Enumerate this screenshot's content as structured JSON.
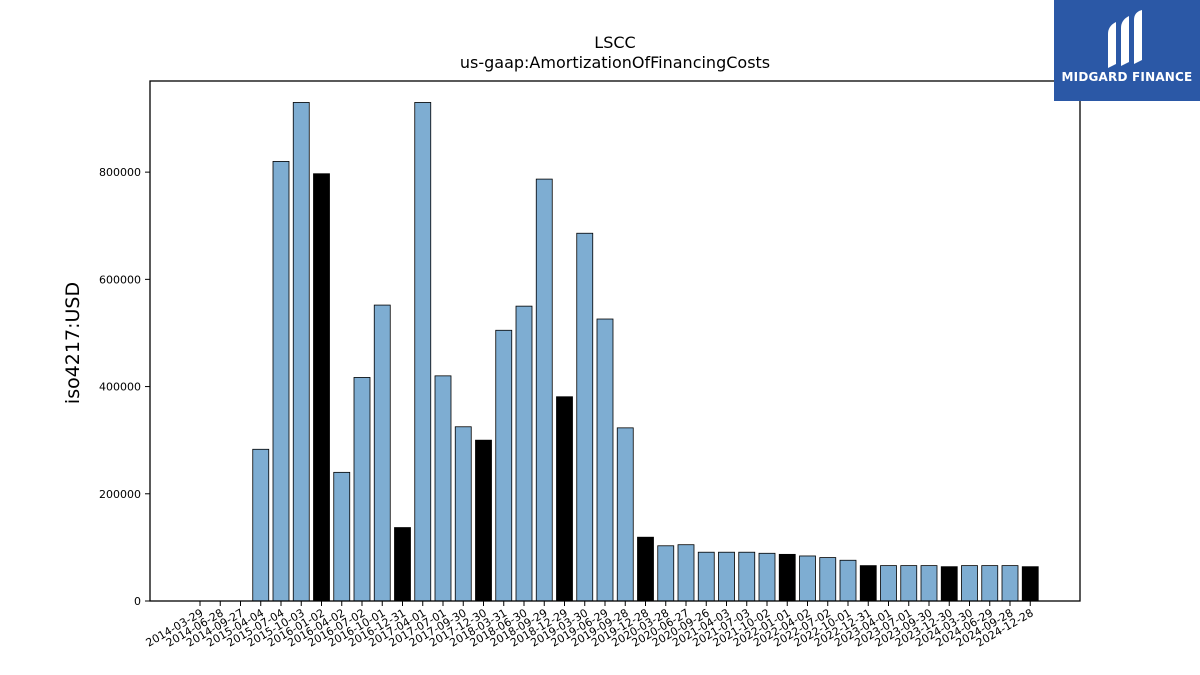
{
  "chart_data": {
    "type": "bar",
    "title": "LSCC",
    "subtitle": "us-gaap:AmortizationOfFinancingCosts",
    "xlabel": "",
    "ylabel": "iso4217:USD",
    "ylim": [
      0,
      970000
    ],
    "yticks": [
      0,
      200000,
      400000,
      600000,
      800000
    ],
    "grid": false,
    "colors": {
      "normal": "#7eadd2",
      "highlight": "#000000"
    },
    "categories": [
      "2014-03-29",
      "2014-06-28",
      "2014-09-27",
      "2015-04-04",
      "2015-07-04",
      "2015-10-03",
      "2016-01-02",
      "2016-04-02",
      "2016-07-02",
      "2016-10-01",
      "2016-12-31",
      "2017-04-01",
      "2017-07-01",
      "2017-09-30",
      "2017-12-30",
      "2018-03-31",
      "2018-06-30",
      "2018-09-29",
      "2018-12-29",
      "2019-03-30",
      "2019-06-29",
      "2019-09-28",
      "2019-12-28",
      "2020-03-28",
      "2020-06-27",
      "2020-09-26",
      "2021-04-03",
      "2021-07-03",
      "2021-10-02",
      "2022-01-01",
      "2022-04-02",
      "2022-07-02",
      "2022-10-01",
      "2022-12-31",
      "2023-04-01",
      "2023-07-01",
      "2023-09-30",
      "2023-12-30",
      "2024-03-30",
      "2024-06-29",
      "2024-09-28",
      "2024-12-28"
    ],
    "values": [
      0,
      0,
      0,
      283000,
      820000,
      930000,
      797000,
      240000,
      417000,
      552000,
      137000,
      930000,
      420000,
      325000,
      300000,
      505000,
      550000,
      787000,
      381000,
      686000,
      526000,
      323000,
      119000,
      103000,
      105000,
      91000,
      91000,
      91000,
      89000,
      87000,
      84000,
      81000,
      76000,
      66000,
      66000,
      66000,
      66000,
      64000,
      66000,
      66000,
      66000,
      64000
    ],
    "highlight": [
      false,
      false,
      false,
      false,
      false,
      false,
      true,
      false,
      false,
      false,
      true,
      false,
      false,
      false,
      true,
      false,
      false,
      false,
      true,
      false,
      false,
      false,
      true,
      false,
      false,
      false,
      false,
      false,
      false,
      true,
      false,
      false,
      false,
      true,
      false,
      false,
      false,
      true,
      false,
      false,
      false,
      true
    ]
  },
  "logo": {
    "text": "MIDGARD FINANCE"
  }
}
